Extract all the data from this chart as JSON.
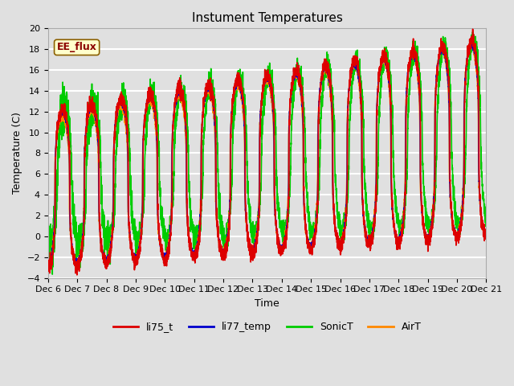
{
  "title": "Instument Temperatures",
  "xlabel": "Time",
  "ylabel": "Temperature (C)",
  "ylim": [
    -4,
    20
  ],
  "xlim": [
    0,
    15
  ],
  "background_color": "#e0e0e0",
  "plot_bg_color": "#e0e0e0",
  "grid_color": "white",
  "series": {
    "li75_t": {
      "color": "#dd0000",
      "lw": 1.2
    },
    "li77_temp": {
      "color": "#0000cc",
      "lw": 1.2
    },
    "SonicT": {
      "color": "#00cc00",
      "lw": 1.2
    },
    "AirT": {
      "color": "#ff8800",
      "lw": 1.2
    }
  },
  "xtick_labels": [
    "Dec 6",
    "Dec 7",
    "Dec 8",
    "Dec 9",
    "Dec 10",
    "Dec 11",
    "Dec 12",
    "Dec 13",
    "Dec 14",
    "Dec 15",
    "Dec 16",
    "Dec 17",
    "Dec 18",
    "Dec 19",
    "Dec 20",
    "Dec 21"
  ],
  "annotation_text": "EE_flux",
  "annotation_color": "#8b0000",
  "annotation_bg": "#ffffcc",
  "annotation_border": "#8b6000"
}
